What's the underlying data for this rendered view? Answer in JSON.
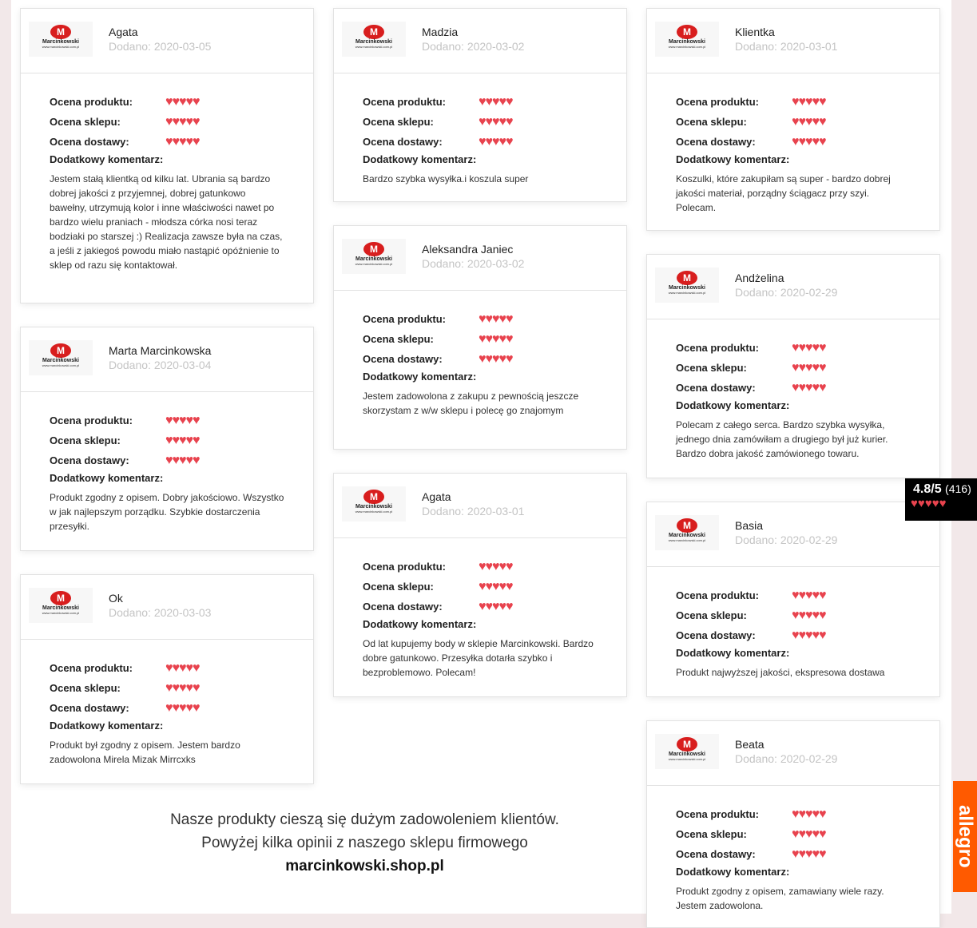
{
  "labels": {
    "product": "Ocena produktu:",
    "shop": "Ocena sklepu:",
    "delivery": "Ocena dostawy:",
    "comment": "Dodatkowy komentarz:",
    "hearts": "♥♥♥♥♥"
  },
  "logo": {
    "brand": "Marcinkowski",
    "url": "www.marcinkowski.com.pl"
  },
  "reviews": [
    {
      "name": "Agata",
      "date": "Dodano: 2020-03-05",
      "ratings": [
        5,
        5,
        5
      ],
      "comment": "Jestem stałą klientką od kilku lat. Ubrania są bardzo dobrej jakości z przyjemnej, dobrej gatunkowo bawełny, utrzymują kolor i inne właściwości nawet po bardzo wielu praniach - młodsza córka nosi teraz bodziaki po starszej :) Realizacja zawsze była na czas, a jeśli z jakiegoś powodu miało nastąpić opóźnienie to sklep od razu się kontaktował."
    },
    {
      "name": "Marta Marcinkowska",
      "date": "Dodano: 2020-03-04",
      "ratings": [
        5,
        5,
        5
      ],
      "comment": "Produkt zgodny z opisem. Dobry jakościowo. Wszystko w jak najlepszym porządku. Szybkie dostarczenia przesyłki."
    },
    {
      "name": "Ok",
      "date": "Dodano: 2020-03-03",
      "ratings": [
        5,
        5,
        5
      ],
      "comment": "Produkt był zgodny z opisem. Jestem bardzo zadowolona Mirela Mizak Mirrcxks"
    },
    {
      "name": "Madzia",
      "date": "Dodano: 2020-03-02",
      "ratings": [
        5,
        5,
        5
      ],
      "comment": "Bardzo szybka wysyłka.i koszula super"
    },
    {
      "name": "Aleksandra Janiec",
      "date": "Dodano: 2020-03-02",
      "ratings": [
        5,
        5,
        5
      ],
      "comment": "Jestem zadowolona z zakupu z pewnością jeszcze skorzystam z w/w sklepu i polecę go znajomym"
    },
    {
      "name": "Agata",
      "date": "Dodano: 2020-03-01",
      "ratings": [
        5,
        5,
        5
      ],
      "comment": "Od lat kupujemy body w sklepie Marcinkowski. Bardzo dobre gatunkowo. Przesyłka dotarła szybko i bezproblemowo. Polecam!"
    },
    {
      "name": "Klientka",
      "date": "Dodano: 2020-03-01",
      "ratings": [
        5,
        5,
        5
      ],
      "comment": "Koszulki, które zakupiłam są super - bardzo dobrej jakości materiał, porządny ściągacz przy szyi. Polecam."
    },
    {
      "name": "Andżelina",
      "date": "Dodano: 2020-02-29",
      "ratings": [
        5,
        5,
        5
      ],
      "comment": "Polecam z całego serca. Bardzo szybka wysyłka, jednego dnia zamówiłam a drugiego był już kurier. Bardzo dobra jakość zamówionego towaru."
    },
    {
      "name": "Basia",
      "date": "Dodano: 2020-02-29",
      "ratings": [
        5,
        5,
        5
      ],
      "comment": "Produkt najwyższej jakości, ekspresowa dostawa"
    },
    {
      "name": "Beata",
      "date": "Dodano: 2020-02-29",
      "ratings": [
        5,
        5,
        5
      ],
      "comment": "Produkt zgodny z opisem, zamawiany wiele razy. Jestem zadowolona."
    }
  ],
  "footer": {
    "line1": "Nasze produkty cieszą się dużym zadowoleniem klientów.",
    "line2": "Powyżej kilka opinii z naszego sklepu firmowego",
    "site": "marcinkowski.shop.pl"
  },
  "badge": {
    "score": "4.8/5",
    "count": "(416)",
    "hearts": "♥♥♥♥♥",
    "rating": 4.8
  },
  "allegro": "allegro",
  "colors": {
    "heart": "#e8434e",
    "allegro": "#ff5a00",
    "logo": "#d81e1e"
  }
}
